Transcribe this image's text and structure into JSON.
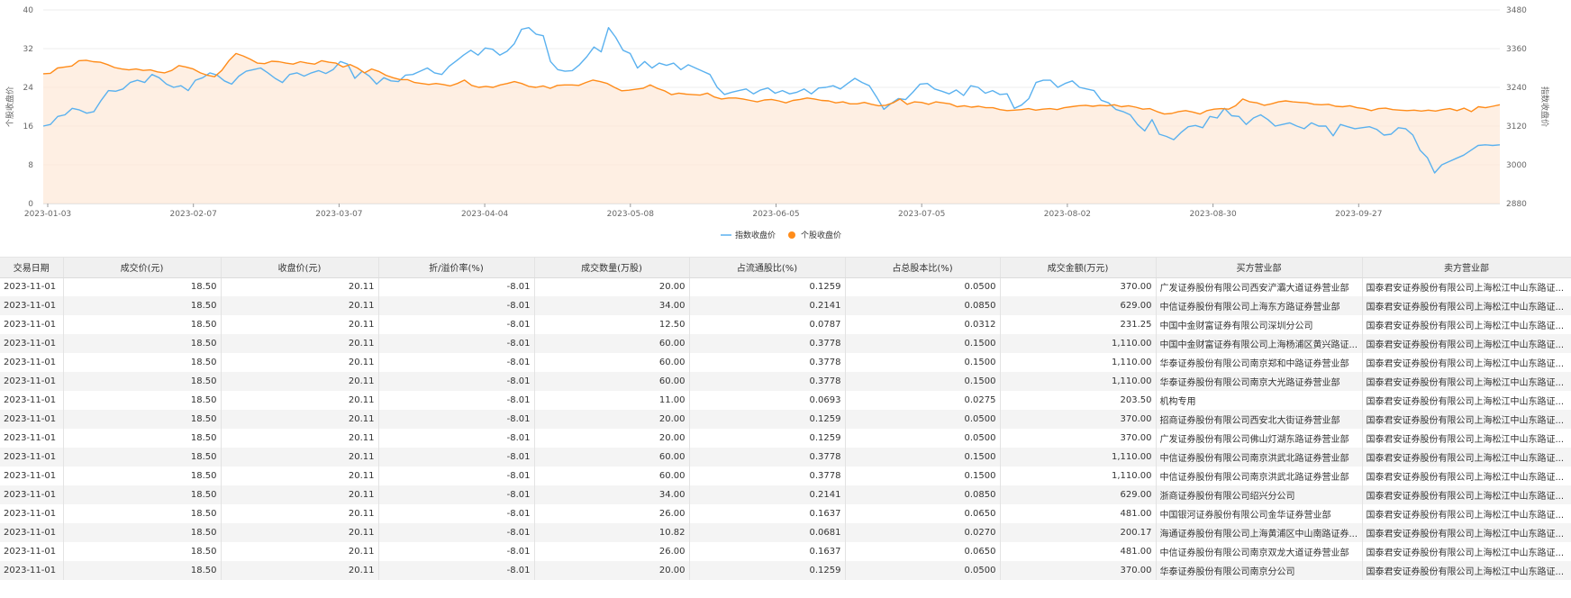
{
  "chart_data": {
    "type": "line",
    "left_axis": {
      "title": "个股收盘价",
      "ticks": [
        "0",
        "8",
        "16",
        "24",
        "32",
        "40"
      ],
      "range": [
        0,
        40
      ]
    },
    "right_axis": {
      "title": "指数收盘价",
      "ticks": [
        "2880",
        "3000",
        "3120",
        "3240",
        "3360",
        "3480"
      ],
      "range": [
        2880,
        3480
      ]
    },
    "x_ticks": [
      "2023-01-03",
      "2023-02-07",
      "2023-03-07",
      "2023-04-04",
      "2023-05-08",
      "2023-06-05",
      "2023-07-05",
      "2023-08-02",
      "2023-08-30",
      "2023-09-27"
    ],
    "grid": true,
    "legend": {
      "placement": "bottom-center",
      "items": [
        {
          "name": "指数收盘价",
          "color": "#5ab1ef"
        },
        {
          "name": "个股收盘价",
          "color": "#ff8c1a"
        }
      ]
    },
    "series": [
      {
        "name": "指数收盘价",
        "axis": "right",
        "color": "#5ab1ef",
        "values": [
          3120,
          3125,
          3150,
          3155,
          3175,
          3170,
          3160,
          3165,
          3200,
          3230,
          3228,
          3235,
          3255,
          3262,
          3255,
          3280,
          3270,
          3250,
          3240,
          3245,
          3230,
          3262,
          3270,
          3285,
          3278,
          3260,
          3250,
          3275,
          3290,
          3295,
          3300,
          3285,
          3268,
          3255,
          3280,
          3285,
          3275,
          3285,
          3292,
          3283,
          3295,
          3320,
          3312,
          3268,
          3290,
          3275,
          3250,
          3270,
          3260,
          3258,
          3278,
          3280,
          3290,
          3300,
          3285,
          3280,
          3305,
          3322,
          3340,
          3355,
          3340,
          3362,
          3358,
          3340,
          3352,
          3375,
          3420,
          3425,
          3405,
          3400,
          3320,
          3295,
          3290,
          3292,
          3310,
          3335,
          3365,
          3350,
          3425,
          3395,
          3355,
          3345,
          3300,
          3320,
          3300,
          3315,
          3308,
          3315,
          3295,
          3310,
          3300,
          3290,
          3280,
          3240,
          3218,
          3225,
          3230,
          3235,
          3220,
          3232,
          3238,
          3222,
          3230,
          3220,
          3225,
          3235,
          3220,
          3238,
          3240,
          3245,
          3235,
          3252,
          3268,
          3255,
          3245,
          3210,
          3172,
          3190,
          3205,
          3202,
          3225,
          3250,
          3252,
          3235,
          3228,
          3220,
          3232,
          3215,
          3245,
          3240,
          3222,
          3230,
          3218,
          3220,
          3175,
          3185,
          3205,
          3255,
          3262,
          3262,
          3240,
          3252,
          3260,
          3240,
          3235,
          3230,
          3200,
          3192,
          3172,
          3165,
          3155,
          3125,
          3105,
          3140,
          3095,
          3088,
          3078,
          3100,
          3118,
          3122,
          3115,
          3150,
          3145,
          3175,
          3152,
          3150,
          3125,
          3145,
          3155,
          3140,
          3120,
          3125,
          3130,
          3120,
          3112,
          3130,
          3120,
          3120,
          3090,
          3125,
          3118,
          3112,
          3115,
          3118,
          3110,
          3092,
          3095,
          3115,
          3112,
          3092,
          3045,
          3022,
          2975,
          3000,
          3010,
          3020,
          3030,
          3045,
          3060,
          3062,
          3060,
          3062
        ]
      },
      {
        "name": "个股收盘价",
        "axis": "left",
        "color": "#ff8c1a",
        "values": [
          26.8,
          26.9,
          28.0,
          28.2,
          28.4,
          29.5,
          29.6,
          29.3,
          29.2,
          28.7,
          28.1,
          27.8,
          27.6,
          27.8,
          27.5,
          27.6,
          27.2,
          27.0,
          27.5,
          28.5,
          28.2,
          27.8,
          27.0,
          26.5,
          26.2,
          27.5,
          29.5,
          31.0,
          30.5,
          29.8,
          29.0,
          28.9,
          29.4,
          29.3,
          29.0,
          28.8,
          29.3,
          29.0,
          28.8,
          29.5,
          29.2,
          29.0,
          28.2,
          28.7,
          28.0,
          27.0,
          27.8,
          27.3,
          26.5,
          26.0,
          25.6,
          25.6,
          25.0,
          24.8,
          24.6,
          24.8,
          24.6,
          24.3,
          24.8,
          25.5,
          24.4,
          24.0,
          24.2,
          24.0,
          24.5,
          24.8,
          25.2,
          24.8,
          24.2,
          24.0,
          24.3,
          23.8,
          24.4,
          24.5,
          24.5,
          24.4,
          25.0,
          25.5,
          25.2,
          24.8,
          24.0,
          23.3,
          23.4,
          23.6,
          23.8,
          24.5,
          23.8,
          23.3,
          22.5,
          22.8,
          22.6,
          22.5,
          22.4,
          22.8,
          22.0,
          21.6,
          21.8,
          21.8,
          21.6,
          21.3,
          21.0,
          21.4,
          21.5,
          21.2,
          20.8,
          21.3,
          21.5,
          21.8,
          21.6,
          21.3,
          21.2,
          20.8,
          21.0,
          20.6,
          20.6,
          20.9,
          20.5,
          20.2,
          20.3,
          20.8,
          21.6,
          20.5,
          21.0,
          20.9,
          20.5,
          21.0,
          20.8,
          20.6,
          20.0,
          20.2,
          19.9,
          20.1,
          19.8,
          19.8,
          19.4,
          19.2,
          19.3,
          19.4,
          19.6,
          19.3,
          19.5,
          19.6,
          19.4,
          19.8,
          20.0,
          20.2,
          20.3,
          20.1,
          20.3,
          20.2,
          20.4,
          20.0,
          20.2,
          19.9,
          19.5,
          19.6,
          19.0,
          18.5,
          18.6,
          19.0,
          19.2,
          18.9,
          18.5,
          19.2,
          19.5,
          19.6,
          19.5,
          20.2,
          21.6,
          21.0,
          20.8,
          20.3,
          20.6,
          21.0,
          21.2,
          21.0,
          20.9,
          20.8,
          20.5,
          20.4,
          20.5,
          20.1,
          20.0,
          20.2,
          19.8,
          19.6,
          19.2,
          19.6,
          19.7,
          19.4,
          19.3,
          19.2,
          19.3,
          19.1,
          19.3,
          19.1,
          19.4,
          19.6,
          19.2,
          19.7,
          19.0,
          20.0,
          19.8,
          20.1,
          20.4
        ]
      }
    ]
  },
  "table": {
    "columns": [
      "交易日期",
      "成交价(元)",
      "收盘价(元)",
      "折/溢价率(%)",
      "成交数量(万股)",
      "占流通股比(%)",
      "占总股本比(%)",
      "成交金额(万元)",
      "买方营业部",
      "卖方营业部"
    ],
    "rows": [
      [
        "2023-11-01",
        "18.50",
        "20.11",
        "-8.01",
        "20.00",
        "0.1259",
        "0.0500",
        "370.00",
        "广发证券股份有限公司西安浐灞大道证券营业部",
        "国泰君安证券股份有限公司上海松江中山东路证..."
      ],
      [
        "2023-11-01",
        "18.50",
        "20.11",
        "-8.01",
        "34.00",
        "0.2141",
        "0.0850",
        "629.00",
        "中信证券股份有限公司上海东方路证券营业部",
        "国泰君安证券股份有限公司上海松江中山东路证..."
      ],
      [
        "2023-11-01",
        "18.50",
        "20.11",
        "-8.01",
        "12.50",
        "0.0787",
        "0.0312",
        "231.25",
        "中国中金财富证券有限公司深圳分公司",
        "国泰君安证券股份有限公司上海松江中山东路证..."
      ],
      [
        "2023-11-01",
        "18.50",
        "20.11",
        "-8.01",
        "60.00",
        "0.3778",
        "0.1500",
        "1,110.00",
        "中国中金财富证券有限公司上海杨浦区黄兴路证...",
        "国泰君安证券股份有限公司上海松江中山东路证..."
      ],
      [
        "2023-11-01",
        "18.50",
        "20.11",
        "-8.01",
        "60.00",
        "0.3778",
        "0.1500",
        "1,110.00",
        "华泰证券股份有限公司南京郑和中路证券营业部",
        "国泰君安证券股份有限公司上海松江中山东路证..."
      ],
      [
        "2023-11-01",
        "18.50",
        "20.11",
        "-8.01",
        "60.00",
        "0.3778",
        "0.1500",
        "1,110.00",
        "华泰证券股份有限公司南京大光路证券营业部",
        "国泰君安证券股份有限公司上海松江中山东路证..."
      ],
      [
        "2023-11-01",
        "18.50",
        "20.11",
        "-8.01",
        "11.00",
        "0.0693",
        "0.0275",
        "203.50",
        "机构专用",
        "国泰君安证券股份有限公司上海松江中山东路证..."
      ],
      [
        "2023-11-01",
        "18.50",
        "20.11",
        "-8.01",
        "20.00",
        "0.1259",
        "0.0500",
        "370.00",
        "招商证券股份有限公司西安北大街证券营业部",
        "国泰君安证券股份有限公司上海松江中山东路证..."
      ],
      [
        "2023-11-01",
        "18.50",
        "20.11",
        "-8.01",
        "20.00",
        "0.1259",
        "0.0500",
        "370.00",
        "广发证券股份有限公司佛山灯湖东路证券营业部",
        "国泰君安证券股份有限公司上海松江中山东路证..."
      ],
      [
        "2023-11-01",
        "18.50",
        "20.11",
        "-8.01",
        "60.00",
        "0.3778",
        "0.1500",
        "1,110.00",
        "中信证券股份有限公司南京洪武北路证券营业部",
        "国泰君安证券股份有限公司上海松江中山东路证..."
      ],
      [
        "2023-11-01",
        "18.50",
        "20.11",
        "-8.01",
        "60.00",
        "0.3778",
        "0.1500",
        "1,110.00",
        "中信证券股份有限公司南京洪武北路证券营业部",
        "国泰君安证券股份有限公司上海松江中山东路证..."
      ],
      [
        "2023-11-01",
        "18.50",
        "20.11",
        "-8.01",
        "34.00",
        "0.2141",
        "0.0850",
        "629.00",
        "浙商证券股份有限公司绍兴分公司",
        "国泰君安证券股份有限公司上海松江中山东路证..."
      ],
      [
        "2023-11-01",
        "18.50",
        "20.11",
        "-8.01",
        "26.00",
        "0.1637",
        "0.0650",
        "481.00",
        "中国银河证券股份有限公司金华证券营业部",
        "国泰君安证券股份有限公司上海松江中山东路证..."
      ],
      [
        "2023-11-01",
        "18.50",
        "20.11",
        "-8.01",
        "10.82",
        "0.0681",
        "0.0270",
        "200.17",
        "海通证券股份有限公司上海黄浦区中山南路证券...",
        "国泰君安证券股份有限公司上海松江中山东路证..."
      ],
      [
        "2023-11-01",
        "18.50",
        "20.11",
        "-8.01",
        "26.00",
        "0.1637",
        "0.0650",
        "481.00",
        "中信证券股份有限公司南京双龙大道证券营业部",
        "国泰君安证券股份有限公司上海松江中山东路证..."
      ],
      [
        "2023-11-01",
        "18.50",
        "20.11",
        "-8.01",
        "20.00",
        "0.1259",
        "0.0500",
        "370.00",
        "华泰证券股份有限公司南京分公司",
        "国泰君安证券股份有限公司上海松江中山东路证..."
      ]
    ]
  }
}
